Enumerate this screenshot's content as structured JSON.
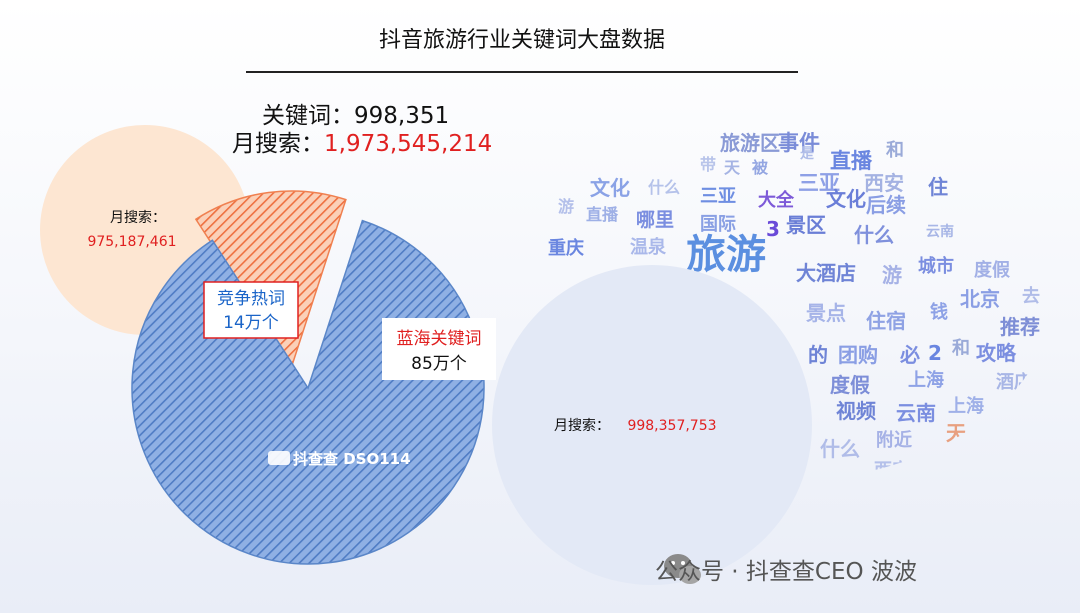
{
  "title": "抖音旅游行业关键词大盘数据",
  "summary": {
    "keyword_label": "关键词：",
    "keyword_value": "998,351",
    "search_label": "月搜索：",
    "search_value": "1,973,545,214"
  },
  "chart_data": {
    "type": "pie",
    "categories": [
      "竞争热词",
      "蓝海关键词"
    ],
    "values": [
      14,
      85
    ],
    "value_labels": [
      "14万个",
      "85万个"
    ],
    "bubbles": [
      {
        "label": "月搜索：",
        "value": "975,187,461"
      },
      {
        "label": "月搜索：",
        "value": "998,357,753"
      }
    ]
  },
  "wordcloud": [
    {
      "t": "旅游",
      "c": "#5b8fe0"
    },
    {
      "t": "事件",
      "c": "#7a8cd8"
    },
    {
      "t": "直播",
      "c": "#6a86e0"
    },
    {
      "t": "三亚",
      "c": "#8ea0e6"
    },
    {
      "t": "和",
      "c": "#9aaad8"
    },
    {
      "t": "旅游区",
      "c": "#8a9ad6"
    },
    {
      "t": "是",
      "c": "#b0bde8"
    },
    {
      "t": "西安",
      "c": "#a4b2e2"
    },
    {
      "t": "住",
      "c": "#6f84d6"
    },
    {
      "t": "带",
      "c": "#b8c4ea"
    },
    {
      "t": "天",
      "c": "#a6b4e4"
    },
    {
      "t": "被",
      "c": "#94a6e2"
    },
    {
      "t": "文化",
      "c": "#8aa2e6"
    },
    {
      "t": "什么",
      "c": "#b5c2ea"
    },
    {
      "t": "三亚",
      "c": "#6e8ee2"
    },
    {
      "t": "大全",
      "c": "#7d5ad8"
    },
    {
      "t": "文化",
      "c": "#6a7ed8"
    },
    {
      "t": "后续",
      "c": "#8a9ee4"
    },
    {
      "t": "游",
      "c": "#b4c0ea"
    },
    {
      "t": "直播",
      "c": "#9eb0e6"
    },
    {
      "t": "哪里",
      "c": "#7b8ee0"
    },
    {
      "t": "国际",
      "c": "#8aa0e4"
    },
    {
      "t": "3",
      "c": "#6a4ad8"
    },
    {
      "t": "景区",
      "c": "#6a7ed6"
    },
    {
      "t": "什么",
      "c": "#7f90dc"
    },
    {
      "t": "云南",
      "c": "#a8b6e6"
    },
    {
      "t": "重庆",
      "c": "#6a86e0"
    },
    {
      "t": "温泉",
      "c": "#aab8ea"
    },
    {
      "t": "大酒店",
      "c": "#6f84d6"
    },
    {
      "t": "游",
      "c": "#a6b2e6"
    },
    {
      "t": "城市",
      "c": "#7b8ee0"
    },
    {
      "t": "度假",
      "c": "#a2b0e6"
    },
    {
      "t": "北京",
      "c": "#8a9ee4"
    },
    {
      "t": "去",
      "c": "#b0bce8"
    },
    {
      "t": "景点",
      "c": "#a6b4e8"
    },
    {
      "t": "住宿",
      "c": "#8fa2e4"
    },
    {
      "t": "钱",
      "c": "#8ea2e6"
    },
    {
      "t": "推荐",
      "c": "#7e8ed6"
    },
    {
      "t": "的",
      "c": "#6f84d6"
    },
    {
      "t": "团购",
      "c": "#8a9ee4"
    },
    {
      "t": "必",
      "c": "#7b8ee0"
    },
    {
      "t": "2",
      "c": "#6a86e0"
    },
    {
      "t": "和",
      "c": "#9aaad8"
    },
    {
      "t": "攻略",
      "c": "#7b8ee0"
    },
    {
      "t": "度假",
      "c": "#7d8ed8"
    },
    {
      "t": "上海",
      "c": "#8ea2e6"
    },
    {
      "t": "酒店",
      "c": "#a8b6e6"
    },
    {
      "t": "视频",
      "c": "#6f84d6"
    },
    {
      "t": "云南",
      "c": "#7b8ee0"
    },
    {
      "t": "上海",
      "c": "#9fb0e8"
    },
    {
      "t": "2",
      "c": "#a6b4e8"
    },
    {
      "t": "被",
      "c": "#8a9ee4"
    },
    {
      "t": "什么",
      "c": "#b0bce8"
    },
    {
      "t": "附近",
      "c": "#a6b2e6"
    },
    {
      "t": "天",
      "c": "#e8a080"
    },
    {
      "t": "带",
      "c": "#9aaad8"
    },
    {
      "t": "西安",
      "c": "#b4c0ea"
    },
    {
      "t": "适合",
      "c": "#c0cbee"
    }
  ],
  "watermark": "公众号 · 抖查查CEO 波波",
  "logo_text": "抖查查 DSO114",
  "colors": {
    "competitive": "#f08050",
    "blue_ocean": "#5a86c8",
    "left_bubble": "#fde6d2",
    "right_bubble": "#e3e9f6",
    "accent_red": "#e02020"
  }
}
